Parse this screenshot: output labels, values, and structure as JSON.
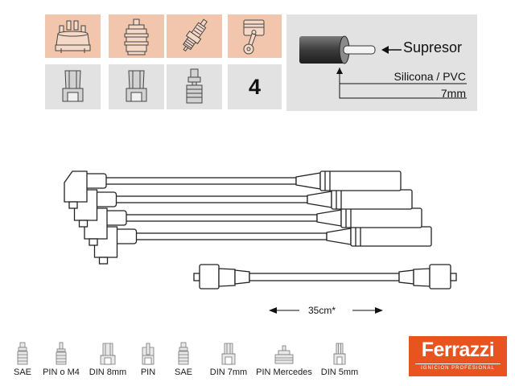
{
  "compatibility": {
    "icons": [
      "distributor-cap-icon",
      "ignition-coil-icon",
      "spark-plug-icon",
      "engine-piston-icon"
    ],
    "cylinders": "4",
    "colors": {
      "highlight": "#f2c6ac",
      "panel": "#e2e2e2"
    }
  },
  "spec": {
    "suppressor_label": "Supresor",
    "material": "Silicona / PVC",
    "diameter": "7mm"
  },
  "diagram": {
    "wire_count": 4,
    "coil_wire_length": "35cm*"
  },
  "legend": [
    {
      "icon": "sae-terminal-icon",
      "label": "SAE"
    },
    {
      "icon": "pin-m4-terminal-icon",
      "label": "PIN o M4"
    },
    {
      "icon": "din-8mm-terminal-icon",
      "label": "DIN 8mm"
    },
    {
      "icon": "pin-terminal-icon",
      "label": "PIN"
    },
    {
      "icon": "sae-terminal-icon",
      "label": "SAE"
    },
    {
      "icon": "din-7mm-terminal-icon",
      "label": "DIN 7mm"
    },
    {
      "icon": "pin-mercedes-terminal-icon",
      "label": "PIN Mercedes"
    },
    {
      "icon": "din-5mm-terminal-icon",
      "label": "DIN 5mm"
    }
  ],
  "brand": {
    "name": "Ferrazzi",
    "tagline": "IGNICION PROFESIONAL",
    "color": "#e8531f"
  }
}
